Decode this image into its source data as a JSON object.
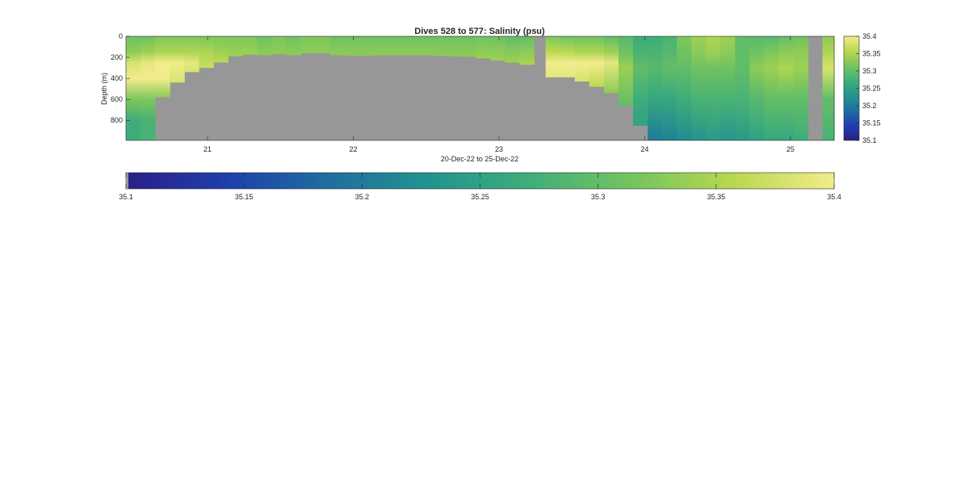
{
  "chart_data": {
    "type": "heatmap",
    "title": "Dives 528 to 577: Salinity (psu)",
    "xlabel": "20-Dec-22 to 25-Dec-22",
    "ylabel": "Depth (m)",
    "xlim": [
      20.44,
      25.3
    ],
    "ylim": [
      0,
      990
    ],
    "y_reversed": true,
    "x_ticks": [
      21,
      22,
      23,
      24,
      25
    ],
    "x_tick_labels": [
      "21",
      "22",
      "23",
      "24",
      "25"
    ],
    "y_ticks": [
      0,
      200,
      400,
      600,
      800
    ],
    "y_tick_labels": [
      "0",
      "200",
      "400",
      "600",
      "800"
    ],
    "colorbar_ticks": [
      35.1,
      35.15,
      35.2,
      35.25,
      35.3,
      35.35,
      35.4
    ],
    "colorbar_tick_labels": [
      "35.1",
      "35.15",
      "35.2",
      "35.25",
      "35.3",
      "35.35",
      "35.4"
    ],
    "clim": [
      35.1,
      35.4
    ],
    "colormap": "parula-like (dark blue to yellow)",
    "colormap_stops": [
      "#2b1f87",
      "#1f3fae",
      "#1e6fa0",
      "#22938f",
      "#3fae7a",
      "#74c45e",
      "#b8d84e",
      "#f2ec8c"
    ],
    "no_data_color": "#979797",
    "grid": false,
    "profiles": [
      {
        "t": 20.44,
        "bottom": 990,
        "values": [
          [
            0,
            35.31
          ],
          [
            150,
            35.33
          ],
          [
            250,
            35.38
          ],
          [
            400,
            35.4
          ],
          [
            600,
            35.32
          ],
          [
            800,
            35.27
          ],
          [
            990,
            35.27
          ]
        ]
      },
      {
        "t": 20.54,
        "bottom": 990,
        "values": [
          [
            0,
            35.31
          ],
          [
            150,
            35.34
          ],
          [
            250,
            35.39
          ],
          [
            400,
            35.4
          ],
          [
            600,
            35.32
          ],
          [
            800,
            35.28
          ],
          [
            990,
            35.28
          ]
        ]
      },
      {
        "t": 20.64,
        "bottom": 580,
        "values": [
          [
            0,
            35.32
          ],
          [
            150,
            35.35
          ],
          [
            250,
            35.4
          ],
          [
            400,
            35.4
          ],
          [
            580,
            35.33
          ]
        ]
      },
      {
        "t": 20.74,
        "bottom": 440,
        "values": [
          [
            0,
            35.32
          ],
          [
            150,
            35.35
          ],
          [
            250,
            35.4
          ],
          [
            440,
            35.38
          ]
        ]
      },
      {
        "t": 20.84,
        "bottom": 340,
        "values": [
          [
            0,
            35.32
          ],
          [
            150,
            35.35
          ],
          [
            250,
            35.39
          ],
          [
            340,
            35.38
          ]
        ]
      },
      {
        "t": 20.94,
        "bottom": 300,
        "values": [
          [
            0,
            35.32
          ],
          [
            150,
            35.35
          ],
          [
            300,
            35.37
          ]
        ]
      },
      {
        "t": 21.04,
        "bottom": 250,
        "values": [
          [
            0,
            35.32
          ],
          [
            150,
            35.34
          ],
          [
            250,
            35.36
          ]
        ]
      },
      {
        "t": 21.14,
        "bottom": 190,
        "values": [
          [
            0,
            35.32
          ],
          [
            190,
            35.34
          ]
        ]
      },
      {
        "t": 21.24,
        "bottom": 175,
        "values": [
          [
            0,
            35.32
          ],
          [
            175,
            35.34
          ]
        ]
      },
      {
        "t": 21.34,
        "bottom": 180,
        "values": [
          [
            0,
            35.31
          ],
          [
            180,
            35.33
          ]
        ]
      },
      {
        "t": 21.44,
        "bottom": 170,
        "values": [
          [
            0,
            35.32
          ],
          [
            170,
            35.33
          ]
        ]
      },
      {
        "t": 21.54,
        "bottom": 180,
        "values": [
          [
            0,
            35.31
          ],
          [
            180,
            35.33
          ]
        ]
      },
      {
        "t": 21.64,
        "bottom": 160,
        "values": [
          [
            0,
            35.32
          ],
          [
            160,
            35.33
          ]
        ]
      },
      {
        "t": 21.74,
        "bottom": 160,
        "values": [
          [
            0,
            35.32
          ],
          [
            160,
            35.33
          ]
        ]
      },
      {
        "t": 21.84,
        "bottom": 180,
        "values": [
          [
            0,
            35.31
          ],
          [
            180,
            35.33
          ]
        ]
      },
      {
        "t": 21.94,
        "bottom": 185,
        "values": [
          [
            0,
            35.31
          ],
          [
            185,
            35.33
          ]
        ]
      },
      {
        "t": 22.04,
        "bottom": 185,
        "values": [
          [
            0,
            35.31
          ],
          [
            185,
            35.33
          ]
        ]
      },
      {
        "t": 22.14,
        "bottom": 180,
        "values": [
          [
            0,
            35.31
          ],
          [
            180,
            35.33
          ]
        ]
      },
      {
        "t": 22.24,
        "bottom": 180,
        "values": [
          [
            0,
            35.31
          ],
          [
            180,
            35.33
          ]
        ]
      },
      {
        "t": 22.34,
        "bottom": 180,
        "values": [
          [
            0,
            35.31
          ],
          [
            180,
            35.33
          ]
        ]
      },
      {
        "t": 22.44,
        "bottom": 180,
        "values": [
          [
            0,
            35.31
          ],
          [
            180,
            35.33
          ]
        ]
      },
      {
        "t": 22.54,
        "bottom": 185,
        "values": [
          [
            0,
            35.31
          ],
          [
            185,
            35.33
          ]
        ]
      },
      {
        "t": 22.64,
        "bottom": 190,
        "values": [
          [
            0,
            35.31
          ],
          [
            190,
            35.33
          ]
        ]
      },
      {
        "t": 22.74,
        "bottom": 195,
        "values": [
          [
            0,
            35.31
          ],
          [
            195,
            35.33
          ]
        ]
      },
      {
        "t": 22.84,
        "bottom": 210,
        "values": [
          [
            0,
            35.31
          ],
          [
            210,
            35.34
          ]
        ]
      },
      {
        "t": 22.94,
        "bottom": 230,
        "values": [
          [
            0,
            35.31
          ],
          [
            230,
            35.34
          ]
        ]
      },
      {
        "t": 23.04,
        "bottom": 250,
        "values": [
          [
            0,
            35.3
          ],
          [
            250,
            35.34
          ]
        ]
      },
      {
        "t": 23.14,
        "bottom": 270,
        "values": [
          [
            0,
            35.3
          ],
          [
            270,
            35.35
          ]
        ]
      },
      {
        "t": 23.24,
        "bottom": 0,
        "values": []
      },
      {
        "t": 23.32,
        "bottom": 390,
        "values": [
          [
            0,
            35.32
          ],
          [
            150,
            35.36
          ],
          [
            250,
            35.4
          ],
          [
            390,
            35.39
          ]
        ]
      },
      {
        "t": 23.42,
        "bottom": 390,
        "values": [
          [
            0,
            35.31
          ],
          [
            150,
            35.36
          ],
          [
            250,
            35.4
          ],
          [
            390,
            35.39
          ]
        ]
      },
      {
        "t": 23.52,
        "bottom": 430,
        "values": [
          [
            0,
            35.31
          ],
          [
            150,
            35.35
          ],
          [
            250,
            35.4
          ],
          [
            430,
            35.38
          ]
        ]
      },
      {
        "t": 23.62,
        "bottom": 480,
        "values": [
          [
            0,
            35.31
          ],
          [
            150,
            35.35
          ],
          [
            250,
            35.4
          ],
          [
            480,
            35.36
          ]
        ]
      },
      {
        "t": 23.72,
        "bottom": 540,
        "values": [
          [
            0,
            35.3
          ],
          [
            150,
            35.34
          ],
          [
            250,
            35.39
          ],
          [
            540,
            35.33
          ]
        ]
      },
      {
        "t": 23.82,
        "bottom": 660,
        "values": [
          [
            0,
            35.29
          ],
          [
            150,
            35.31
          ],
          [
            300,
            35.34
          ],
          [
            660,
            35.3
          ]
        ]
      },
      {
        "t": 23.92,
        "bottom": 850,
        "values": [
          [
            0,
            35.27
          ],
          [
            150,
            35.28
          ],
          [
            300,
            35.3
          ],
          [
            600,
            35.27
          ],
          [
            850,
            35.25
          ]
        ]
      },
      {
        "t": 24.02,
        "bottom": 990,
        "values": [
          [
            0,
            35.27
          ],
          [
            150,
            35.28
          ],
          [
            300,
            35.29
          ],
          [
            600,
            35.26
          ],
          [
            990,
            35.2
          ]
        ]
      },
      {
        "t": 24.12,
        "bottom": 990,
        "values": [
          [
            0,
            35.28
          ],
          [
            150,
            35.29
          ],
          [
            300,
            35.3
          ],
          [
            600,
            35.26
          ],
          [
            990,
            35.21
          ]
        ]
      },
      {
        "t": 24.22,
        "bottom": 990,
        "values": [
          [
            0,
            35.32
          ],
          [
            150,
            35.31
          ],
          [
            300,
            35.3
          ],
          [
            600,
            35.27
          ],
          [
            990,
            35.22
          ]
        ]
      },
      {
        "t": 24.32,
        "bottom": 990,
        "values": [
          [
            0,
            35.34
          ],
          [
            150,
            35.33
          ],
          [
            300,
            35.31
          ],
          [
            600,
            35.28
          ],
          [
            990,
            35.23
          ]
        ]
      },
      {
        "t": 24.42,
        "bottom": 990,
        "values": [
          [
            0,
            35.35
          ],
          [
            150,
            35.34
          ],
          [
            300,
            35.31
          ],
          [
            600,
            35.28
          ],
          [
            990,
            35.24
          ]
        ]
      },
      {
        "t": 24.52,
        "bottom": 990,
        "values": [
          [
            0,
            35.34
          ],
          [
            150,
            35.33
          ],
          [
            300,
            35.31
          ],
          [
            600,
            35.28
          ],
          [
            990,
            35.23
          ]
        ]
      },
      {
        "t": 24.62,
        "bottom": 990,
        "values": [
          [
            0,
            35.3
          ],
          [
            150,
            35.3
          ],
          [
            300,
            35.3
          ],
          [
            600,
            35.28
          ],
          [
            990,
            35.24
          ]
        ]
      },
      {
        "t": 24.72,
        "bottom": 990,
        "values": [
          [
            0,
            35.29
          ],
          [
            150,
            35.31
          ],
          [
            300,
            35.33
          ],
          [
            600,
            35.29
          ],
          [
            990,
            35.25
          ]
        ]
      },
      {
        "t": 24.82,
        "bottom": 990,
        "values": [
          [
            0,
            35.29
          ],
          [
            150,
            35.32
          ],
          [
            300,
            35.34
          ],
          [
            600,
            35.3
          ],
          [
            990,
            35.26
          ]
        ]
      },
      {
        "t": 24.92,
        "bottom": 990,
        "values": [
          [
            0,
            35.3
          ],
          [
            150,
            35.33
          ],
          [
            300,
            35.35
          ],
          [
            600,
            35.3
          ],
          [
            990,
            35.26
          ]
        ]
      },
      {
        "t": 25.02,
        "bottom": 990,
        "values": [
          [
            0,
            35.31
          ],
          [
            150,
            35.33
          ],
          [
            300,
            35.34
          ],
          [
            600,
            35.3
          ],
          [
            990,
            35.27
          ]
        ]
      },
      {
        "t": 25.12,
        "bottom": 0,
        "values": []
      },
      {
        "t": 25.22,
        "bottom": 990,
        "values": [
          [
            0,
            35.33
          ],
          [
            150,
            35.35
          ],
          [
            300,
            35.38
          ],
          [
            600,
            35.3
          ],
          [
            990,
            35.28
          ]
        ]
      }
    ]
  }
}
